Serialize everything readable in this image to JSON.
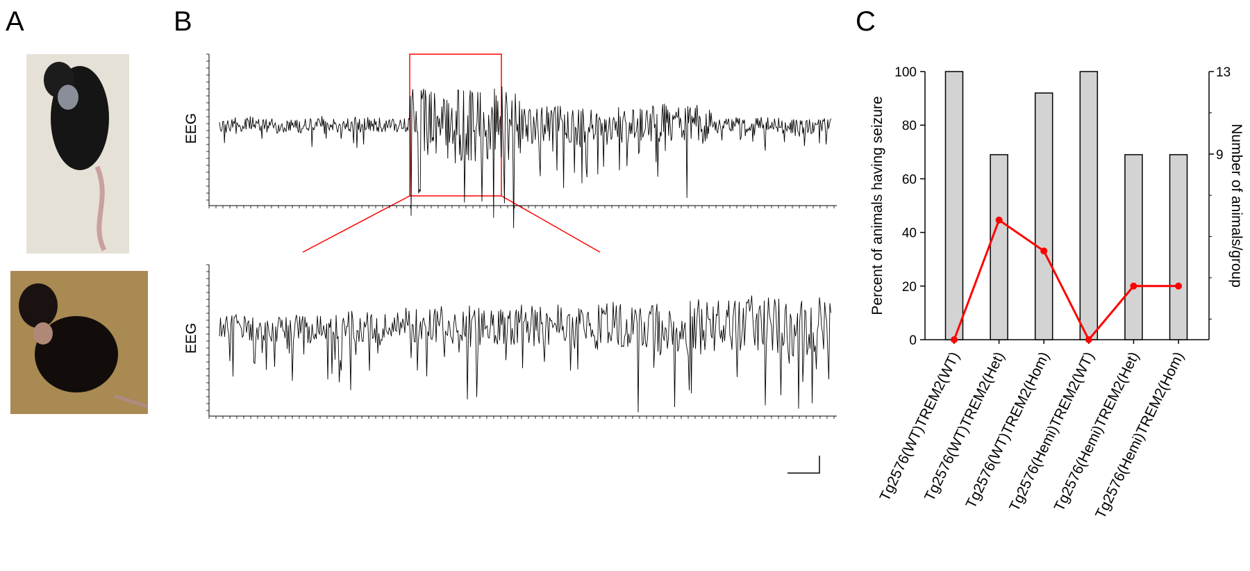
{
  "panels": {
    "a": {
      "label": "A"
    },
    "b": {
      "label": "B",
      "eeg_top_label": "EEG",
      "eeg_bottom_label": "EEG"
    },
    "c": {
      "label": "C"
    }
  },
  "chart_data": {
    "type": "bar",
    "categories": [
      "Tg2576(WT)TREM2(WT)",
      "Tg2576(WT)TREM2(Het)",
      "Tg2576(WT)TREM2(Hom)",
      "Tg2576(Hemi)TREM2(WT)",
      "Tg2576(Hemi)TREM2(Het)",
      "Tg2576(Hemi)TREM2(Hom)"
    ],
    "series": [
      {
        "type": "bar",
        "color": "#d3d3d3",
        "values": [
          100,
          69,
          92,
          100,
          69,
          69
        ]
      },
      {
        "type": "line",
        "color": "#ff0000",
        "axis": "y2",
        "values": [
          0,
          5.8,
          4.3,
          0,
          2.6,
          2.6
        ]
      }
    ],
    "ylabel": "Percent of animals having seizure",
    "y2label": "Number of animals/group",
    "ylim": [
      0,
      100
    ],
    "yticks": [
      0,
      20,
      40,
      60,
      80,
      100
    ],
    "y2lim": [
      0,
      13
    ],
    "y2ticks": [
      9,
      13
    ]
  }
}
